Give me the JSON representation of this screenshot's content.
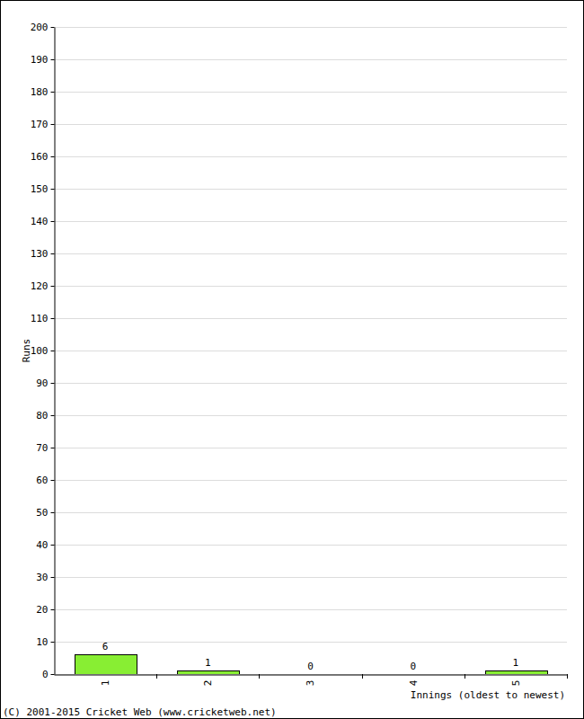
{
  "chart_data": {
    "type": "bar",
    "categories": [
      "1",
      "2",
      "3",
      "4",
      "5"
    ],
    "values": [
      6,
      1,
      0,
      0,
      1
    ],
    "color": "#88ee33",
    "ylim": [
      0,
      200
    ],
    "yticks": [
      0,
      10,
      20,
      30,
      40,
      50,
      60,
      70,
      80,
      90,
      100,
      110,
      120,
      130,
      140,
      150,
      160,
      170,
      180,
      190,
      200
    ],
    "grid": true,
    "data_labels": true,
    "x_label": "Innings (oldest to newest)",
    "y_label": "Runs",
    "annotations": [
      "(C) 2001-2015 Cricket Web (www.cricketweb.net)"
    ]
  }
}
